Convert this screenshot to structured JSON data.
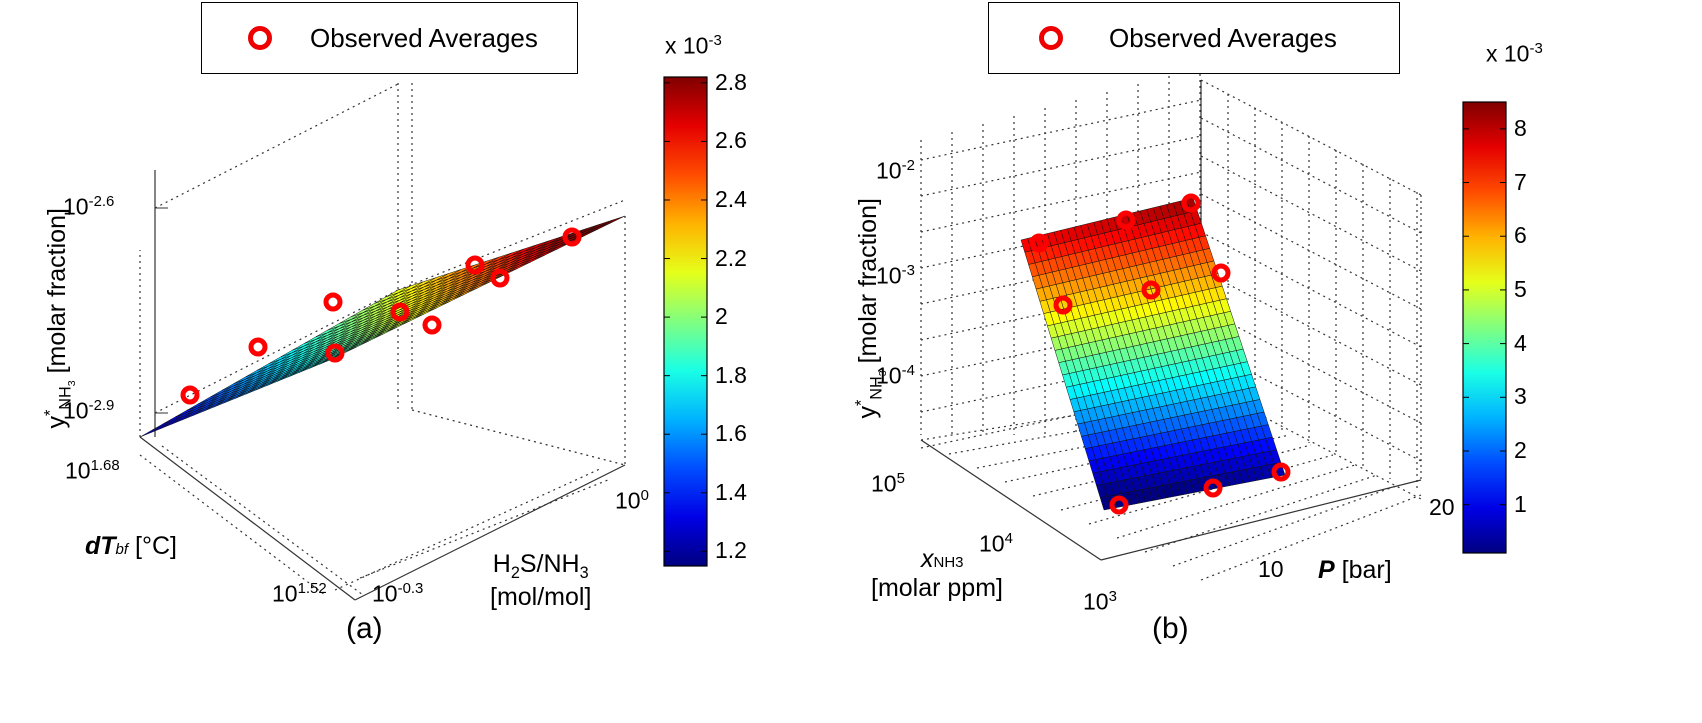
{
  "panel_a": {
    "caption": "(a)",
    "legend": "Observed Averages",
    "z_label": "[molar fraction]",
    "x_label_var": "dT",
    "x_label_sub": "bf",
    "x_label_unit": "[°C]",
    "y_label_line1": "H2S/NH3",
    "y_label_line2": "[mol/mol]",
    "z_ticks": [
      {
        "base": "10",
        "exp": "-2.6"
      },
      {
        "base": "10",
        "exp": "-2.9"
      }
    ],
    "x_ticks": [
      {
        "base": "10",
        "exp": "1.68"
      },
      {
        "base": "10",
        "exp": "1.52"
      }
    ],
    "y_ticks": [
      {
        "base": "10",
        "exp": "-0.3"
      },
      {
        "base": "10",
        "exp": "0"
      }
    ],
    "colorbar": {
      "multiplier_base": "x 10",
      "multiplier_exp": "-3",
      "ticks": [
        "2.8",
        "2.6",
        "2.4",
        "2.2",
        "2",
        "1.8",
        "1.6",
        "1.4",
        "1.2"
      ],
      "min": 1.15,
      "max": 2.82
    }
  },
  "panel_b": {
    "caption": "(b)",
    "legend": "Observed Averages",
    "z_label": "[molar fraction]",
    "x_label_var": "x",
    "x_label_sub": "NH3",
    "x_label_unit": "[molar ppm]",
    "y_label_var": "P",
    "y_label_unit": "[bar]",
    "z_ticks": [
      {
        "base": "10",
        "exp": "-2"
      },
      {
        "base": "10",
        "exp": "-3"
      },
      {
        "base": "10",
        "exp": "-4"
      }
    ],
    "x_ticks": [
      {
        "base": "10",
        "exp": "5"
      },
      {
        "base": "10",
        "exp": "4"
      },
      {
        "base": "10",
        "exp": "3"
      }
    ],
    "y_ticks": [
      "10",
      "20"
    ],
    "colorbar": {
      "multiplier_base": "x 10",
      "multiplier_exp": "-3",
      "ticks": [
        "8",
        "7",
        "6",
        "5",
        "4",
        "3",
        "2",
        "1"
      ],
      "min": 0.1,
      "max": 8.5
    }
  },
  "chart_data": [
    {
      "type": "surface",
      "panel": "a",
      "zlabel": "y*NH3 [molar fraction]",
      "xlabel": "dTbf [°C]",
      "ylabel": "H2S/NH3 [mol/mol]",
      "scale": "log",
      "zlim_ticks": [
        "10^-2.9",
        "10^-2.6"
      ],
      "series": [
        {
          "name": "Observed Averages",
          "marker": "circle",
          "color": "#ff0000"
        }
      ],
      "colorbar_range": [
        0.00115,
        0.00282
      ]
    },
    {
      "type": "surface",
      "panel": "b",
      "zlabel": "y*NH3 [molar fraction]",
      "xlabel": "xNH3 [molar ppm]",
      "ylabel": "P [bar]",
      "scale": "log",
      "zlim_ticks": [
        "10^-4",
        "10^-3",
        "10^-2"
      ],
      "series": [
        {
          "name": "Observed Averages",
          "marker": "circle",
          "color": "#ff0000"
        }
      ],
      "colorbar_range": [
        0.0001,
        0.0085
      ]
    }
  ]
}
